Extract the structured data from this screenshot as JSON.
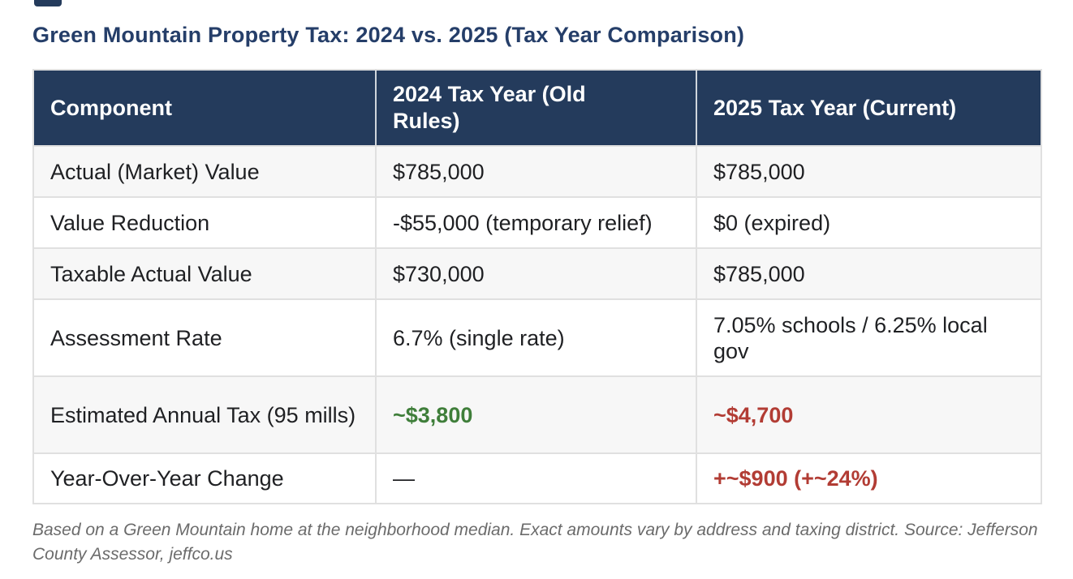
{
  "title": "Green Mountain Property Tax: 2024 vs. 2025 (Tax Year Comparison)",
  "table": {
    "headers": [
      "Component",
      "2024 Tax Year (Old Rules)",
      "2025 Tax Year (Current)"
    ],
    "rows": [
      {
        "cells": [
          "Actual (Market) Value",
          "$785,000",
          "$785,000"
        ],
        "styles": [
          "plain",
          "plain",
          "plain"
        ]
      },
      {
        "cells": [
          "Value Reduction",
          "-$55,000 (temporary relief)",
          "$0 (expired)"
        ],
        "styles": [
          "plain",
          "plain",
          "plain"
        ]
      },
      {
        "cells": [
          "Taxable Actual Value",
          "$730,000",
          "$785,000"
        ],
        "styles": [
          "plain",
          "plain",
          "plain"
        ]
      },
      {
        "cells": [
          "Assessment Rate",
          "6.7% (single rate)",
          "7.05% schools / 6.25% local gov"
        ],
        "styles": [
          "plain",
          "plain",
          "plain"
        ]
      },
      {
        "cells": [
          "Estimated Annual Tax (95 mills)",
          "~$3,800",
          "~$4,700"
        ],
        "styles": [
          "plain",
          "green-bold",
          "red-bold"
        ]
      },
      {
        "cells": [
          "Year-Over-Year Change",
          "—",
          "+~$900 (+~24%)"
        ],
        "styles": [
          "plain",
          "plain",
          "red-bold"
        ]
      }
    ]
  },
  "footnote": "Based on a Green Mountain home at the neighborhood median. Exact amounts vary by address and taxing district. Source: Jefferson County Assessor, jeffco.us",
  "colors": {
    "header_background": "#243b5c",
    "title_text": "#253e69",
    "positive_green": "#3f7e3a",
    "negative_red": "#b23c34",
    "row_alternate": "#f7f7f7"
  }
}
